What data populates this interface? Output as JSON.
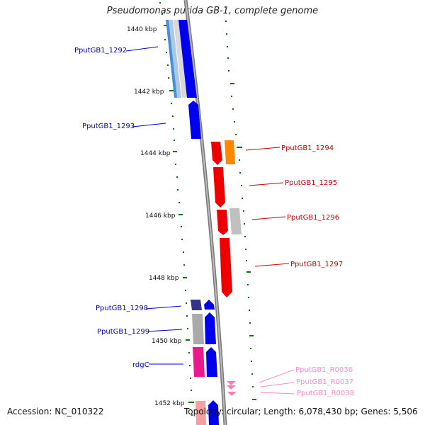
{
  "title": "Pseudomonas putida GB-1, complete genome",
  "footer": {
    "accession": "Accession: NC_010322",
    "topology": "Topology: circular; Length: 6,078,430 bp; Genes: 5,506"
  },
  "ticks": [
    "1440 kbp",
    "1442 kbp",
    "1444 kbp",
    "1446 kbp",
    "1448 kbp",
    "1450 kbp",
    "1452 kbp"
  ],
  "labels": {
    "g1292": "PputGB1_1292",
    "g1293": "PputGB1_1293",
    "g1294": "PputGB1_1294",
    "g1295": "PputGB1_1295",
    "g1296": "PputGB1_1296",
    "g1297": "PputGB1_1297",
    "g1298": "PputGB1_1298",
    "g1299": "PputGB1_1299",
    "rdgC": "rdgC",
    "r0036": "PputGB1_R0036",
    "r0037": "PputGB1_R0037",
    "r0038": "PputGB1_R0038"
  },
  "colors": {
    "forward_strand": "#0000ee",
    "reverse_strand": "#ee0000",
    "rna": "#ff88cc",
    "scale_tick": "#007700",
    "backbone": "#888888"
  }
}
